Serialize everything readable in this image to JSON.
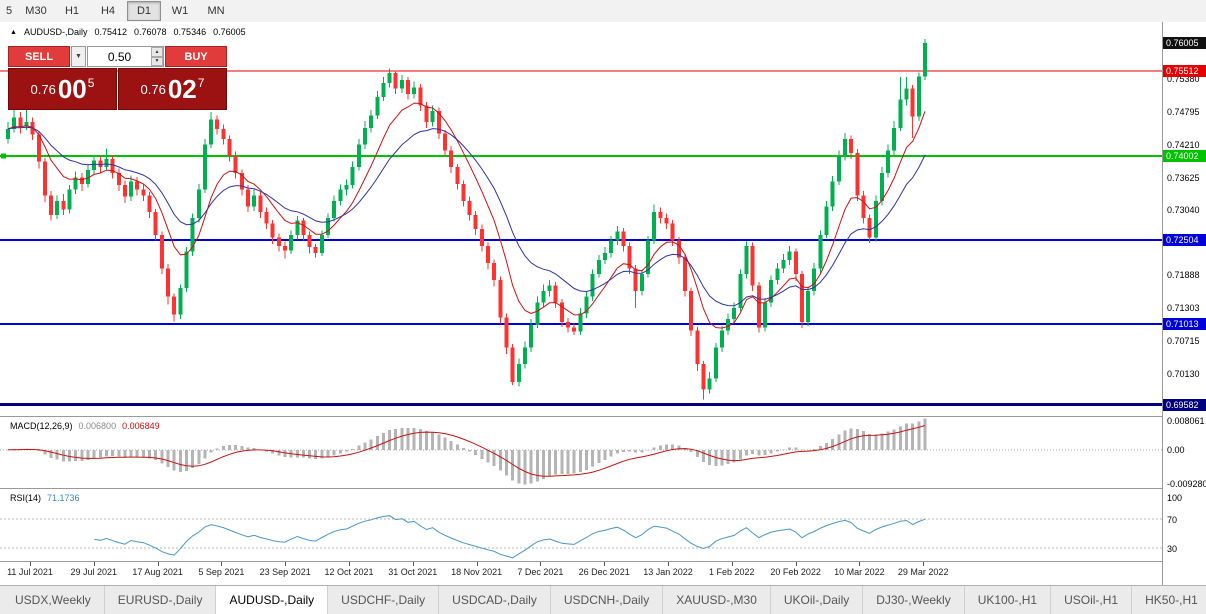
{
  "toolbar": {
    "timeframes": [
      {
        "label": "5",
        "active": false
      },
      {
        "label": "M30",
        "active": false
      },
      {
        "label": "H1",
        "active": false
      },
      {
        "label": "H4",
        "active": false
      },
      {
        "label": "D1",
        "active": true
      },
      {
        "label": "W1",
        "active": false
      },
      {
        "label": "MN",
        "active": false
      }
    ]
  },
  "chart": {
    "info": {
      "direction_icon": "▲",
      "symbol": "AUDUSD-,Daily",
      "open": "0.75412",
      "high": "0.76078",
      "low": "0.75346",
      "close": "0.76005"
    },
    "trade_widget": {
      "sell_label": "SELL",
      "buy_label": "BUY",
      "volume_value": "0.50",
      "sell_price_prefix": "0.76",
      "sell_price_big": "00",
      "sell_price_sup": "5",
      "buy_price_prefix": "0.76",
      "buy_price_big": "02",
      "buy_price_sup": "7",
      "icons": {
        "spinner_up": "▲",
        "spinner_down": "▼",
        "dropdown": "▼"
      }
    },
    "price_axis": {
      "current": {
        "text": "0.76005",
        "value": 0.76005,
        "color": "#111111"
      },
      "ticks": [
        {
          "text": "0.75380",
          "value": 0.7538
        },
        {
          "text": "0.74795",
          "value": 0.74795
        },
        {
          "text": "0.74210",
          "value": 0.7421
        },
        {
          "text": "0.73625",
          "value": 0.73625
        },
        {
          "text": "0.73040",
          "value": 0.7304
        },
        {
          "text": "0.71888",
          "value": 0.71888
        },
        {
          "text": "0.71303",
          "value": 0.71303
        },
        {
          "text": "0.70715",
          "value": 0.70715
        },
        {
          "text": "0.70130",
          "value": 0.7013
        }
      ]
    },
    "macd_panel": {
      "name": "MACD(12,26,9)",
      "main_value": "0.006800",
      "signal_value": "0.006849",
      "axis_labels": [
        {
          "text": "0.008061",
          "value": 0.008061
        },
        {
          "text": "0.00",
          "value": 0
        },
        {
          "text": "-0.009280",
          "value": -0.00928
        }
      ]
    },
    "rsi_panel": {
      "name": "RSI(14)",
      "value": "71.1736",
      "axis_labels": [
        {
          "text": "100",
          "value": 100
        },
        {
          "text": "70",
          "value": 70
        },
        {
          "text": "30",
          "value": 30
        }
      ]
    }
  },
  "chart_data": {
    "type": "candlestick",
    "symbol": "AUDUSD-",
    "timeframe": "Daily",
    "y_range": [
      0.6938,
      0.7638
    ],
    "x_labels": [
      "11 Jul 2021",
      "29 Jul 2021",
      "17 Aug 2021",
      "5 Sep 2021",
      "23 Sep 2021",
      "12 Oct 2021",
      "31 Oct 2021",
      "18 Nov 2021",
      "7 Dec 2021",
      "26 Dec 2021",
      "13 Jan 2022",
      "1 Feb 2022",
      "20 Feb 2022",
      "10 Mar 2022",
      "29 Mar 2022"
    ],
    "colors": {
      "up": "#00b050",
      "down": "#ff3232"
    },
    "h_lines": [
      {
        "price": 0.75512,
        "label": "0.75512",
        "color": "#e60000",
        "width": 1
      },
      {
        "price": 0.74002,
        "label": "0.74002",
        "color": "#00c300",
        "width": 2,
        "handle": true
      },
      {
        "price": 0.72504,
        "label": "0.72504",
        "color": "#0000dd",
        "width": 2
      },
      {
        "price": 0.71013,
        "label": "0.71013",
        "color": "#0000dd",
        "width": 2
      },
      {
        "price": 0.69582,
        "label": "0.69582",
        "color": "#000080",
        "width": 3
      }
    ],
    "moving_averages": [
      {
        "period": 9,
        "color": "#cc1111"
      },
      {
        "period": 19,
        "color": "#3030a8"
      }
    ],
    "macd": {
      "params": [
        12,
        26,
        9
      ],
      "range": [
        -0.0105,
        0.009
      ],
      "histogram_color": "#b4b4b4",
      "signal_color": "#cc1111"
    },
    "rsi": {
      "period": 14,
      "color": "#4a96cc",
      "levels": [
        70,
        30
      ]
    },
    "candles": [
      [
        0.743,
        0.746,
        0.7422,
        0.7448
      ],
      [
        0.7448,
        0.7492,
        0.7442,
        0.7468
      ],
      [
        0.7468,
        0.7478,
        0.744,
        0.7452
      ],
      [
        0.7452,
        0.7482,
        0.7446,
        0.746
      ],
      [
        0.746,
        0.7468,
        0.7428,
        0.7438
      ],
      [
        0.7438,
        0.7444,
        0.7378,
        0.739
      ],
      [
        0.739,
        0.7396,
        0.7318,
        0.733
      ],
      [
        0.733,
        0.7338,
        0.7285,
        0.7295
      ],
      [
        0.7295,
        0.733,
        0.7288,
        0.732
      ],
      [
        0.732,
        0.7332,
        0.7295,
        0.7305
      ],
      [
        0.7305,
        0.7348,
        0.7298,
        0.734
      ],
      [
        0.734,
        0.7372,
        0.7332,
        0.7362
      ],
      [
        0.7362,
        0.737,
        0.7338,
        0.735
      ],
      [
        0.735,
        0.7385,
        0.7344,
        0.7375
      ],
      [
        0.7375,
        0.7402,
        0.7368,
        0.7392
      ],
      [
        0.7392,
        0.74,
        0.737,
        0.738
      ],
      [
        0.738,
        0.7413,
        0.7374,
        0.7395
      ],
      [
        0.7395,
        0.7402,
        0.736,
        0.737
      ],
      [
        0.737,
        0.7378,
        0.7338,
        0.7348
      ],
      [
        0.7348,
        0.7356,
        0.7316,
        0.7328
      ],
      [
        0.7328,
        0.7365,
        0.732,
        0.7355
      ],
      [
        0.7355,
        0.7363,
        0.733,
        0.734
      ],
      [
        0.734,
        0.735,
        0.732,
        0.733
      ],
      [
        0.733,
        0.7336,
        0.729,
        0.73
      ],
      [
        0.73,
        0.7306,
        0.725,
        0.726
      ],
      [
        0.726,
        0.7266,
        0.719,
        0.72
      ],
      [
        0.72,
        0.7208,
        0.7136,
        0.715
      ],
      [
        0.715,
        0.7156,
        0.7106,
        0.7118
      ],
      [
        0.7118,
        0.7172,
        0.711,
        0.7165
      ],
      [
        0.7165,
        0.7238,
        0.7158,
        0.723
      ],
      [
        0.723,
        0.7298,
        0.7222,
        0.729
      ],
      [
        0.729,
        0.735,
        0.7282,
        0.734
      ],
      [
        0.734,
        0.743,
        0.7334,
        0.742
      ],
      [
        0.742,
        0.7478,
        0.7414,
        0.7465
      ],
      [
        0.7465,
        0.7472,
        0.7438,
        0.7448
      ],
      [
        0.7448,
        0.7456,
        0.742,
        0.743
      ],
      [
        0.743,
        0.7436,
        0.739,
        0.74
      ],
      [
        0.74,
        0.7408,
        0.736,
        0.737
      ],
      [
        0.737,
        0.7376,
        0.733,
        0.734
      ],
      [
        0.734,
        0.7348,
        0.73,
        0.731
      ],
      [
        0.731,
        0.734,
        0.7302,
        0.733
      ],
      [
        0.733,
        0.7336,
        0.729,
        0.73
      ],
      [
        0.73,
        0.7308,
        0.727,
        0.728
      ],
      [
        0.728,
        0.7286,
        0.7244,
        0.7255
      ],
      [
        0.7255,
        0.7262,
        0.723,
        0.724
      ],
      [
        0.724,
        0.7248,
        0.7218,
        0.7232
      ],
      [
        0.7232,
        0.7268,
        0.7226,
        0.726
      ],
      [
        0.726,
        0.7293,
        0.7252,
        0.7285
      ],
      [
        0.7285,
        0.729,
        0.725,
        0.726
      ],
      [
        0.726,
        0.7266,
        0.7227,
        0.7238
      ],
      [
        0.7238,
        0.7244,
        0.722,
        0.7228
      ],
      [
        0.7228,
        0.7268,
        0.7222,
        0.726
      ],
      [
        0.726,
        0.7298,
        0.7254,
        0.729
      ],
      [
        0.729,
        0.733,
        0.7284,
        0.732
      ],
      [
        0.732,
        0.7349,
        0.7312,
        0.734
      ],
      [
        0.734,
        0.7358,
        0.733,
        0.7348
      ],
      [
        0.7348,
        0.739,
        0.7342,
        0.738
      ],
      [
        0.738,
        0.743,
        0.7374,
        0.742
      ],
      [
        0.742,
        0.7462,
        0.7412,
        0.745
      ],
      [
        0.745,
        0.7482,
        0.7442,
        0.7472
      ],
      [
        0.7472,
        0.7515,
        0.7466,
        0.7505
      ],
      [
        0.7505,
        0.754,
        0.7498,
        0.753
      ],
      [
        0.753,
        0.7555,
        0.7522,
        0.7547
      ],
      [
        0.7547,
        0.7552,
        0.751,
        0.752
      ],
      [
        0.752,
        0.7544,
        0.7512,
        0.7535
      ],
      [
        0.7535,
        0.754,
        0.75,
        0.751
      ],
      [
        0.751,
        0.7532,
        0.7502,
        0.7522
      ],
      [
        0.7522,
        0.7528,
        0.748,
        0.749
      ],
      [
        0.749,
        0.7496,
        0.745,
        0.746
      ],
      [
        0.746,
        0.749,
        0.7452,
        0.748
      ],
      [
        0.748,
        0.7486,
        0.743,
        0.744
      ],
      [
        0.744,
        0.7446,
        0.74,
        0.741
      ],
      [
        0.741,
        0.7418,
        0.737,
        0.738
      ],
      [
        0.738,
        0.7386,
        0.734,
        0.735
      ],
      [
        0.735,
        0.7356,
        0.731,
        0.732
      ],
      [
        0.732,
        0.7328,
        0.7285,
        0.7295
      ],
      [
        0.7295,
        0.7302,
        0.726,
        0.727
      ],
      [
        0.727,
        0.7278,
        0.723,
        0.724
      ],
      [
        0.724,
        0.7246,
        0.7198,
        0.721
      ],
      [
        0.721,
        0.7216,
        0.7168,
        0.718
      ],
      [
        0.718,
        0.7186,
        0.7102,
        0.7113
      ],
      [
        0.7113,
        0.712,
        0.7048,
        0.706
      ],
      [
        0.706,
        0.7066,
        0.6993,
        0.6998
      ],
      [
        0.6998,
        0.704,
        0.699,
        0.703
      ],
      [
        0.703,
        0.707,
        0.7022,
        0.706
      ],
      [
        0.706,
        0.711,
        0.7052,
        0.71
      ],
      [
        0.71,
        0.715,
        0.7094,
        0.714
      ],
      [
        0.714,
        0.7172,
        0.7132,
        0.716
      ],
      [
        0.716,
        0.718,
        0.715,
        0.717
      ],
      [
        0.717,
        0.7176,
        0.713,
        0.714
      ],
      [
        0.714,
        0.7146,
        0.7096,
        0.7105
      ],
      [
        0.7105,
        0.7112,
        0.7086,
        0.7095
      ],
      [
        0.7095,
        0.7102,
        0.7082,
        0.7088
      ],
      [
        0.7088,
        0.713,
        0.7082,
        0.712
      ],
      [
        0.712,
        0.7158,
        0.7112,
        0.715
      ],
      [
        0.715,
        0.7198,
        0.7142,
        0.719
      ],
      [
        0.719,
        0.7224,
        0.7184,
        0.7215
      ],
      [
        0.7215,
        0.7238,
        0.7208,
        0.7228
      ],
      [
        0.7228,
        0.7258,
        0.722,
        0.725
      ],
      [
        0.725,
        0.7276,
        0.7242,
        0.7266
      ],
      [
        0.7266,
        0.7272,
        0.723,
        0.724
      ],
      [
        0.724,
        0.7246,
        0.719,
        0.72
      ],
      [
        0.72,
        0.7206,
        0.713,
        0.716
      ],
      [
        0.716,
        0.7198,
        0.7152,
        0.719
      ],
      [
        0.719,
        0.7258,
        0.7184,
        0.725
      ],
      [
        0.725,
        0.7314,
        0.7244,
        0.73
      ],
      [
        0.73,
        0.7308,
        0.728,
        0.729
      ],
      [
        0.729,
        0.7298,
        0.727,
        0.728
      ],
      [
        0.728,
        0.7286,
        0.724,
        0.725
      ],
      [
        0.725,
        0.7256,
        0.7208,
        0.722
      ],
      [
        0.722,
        0.7226,
        0.715,
        0.716
      ],
      [
        0.716,
        0.7166,
        0.708,
        0.709
      ],
      [
        0.709,
        0.7096,
        0.7018,
        0.703
      ],
      [
        0.703,
        0.7036,
        0.6967,
        0.6985
      ],
      [
        0.6985,
        0.7016,
        0.6978,
        0.7005
      ],
      [
        0.7005,
        0.7068,
        0.6998,
        0.706
      ],
      [
        0.706,
        0.7098,
        0.7052,
        0.709
      ],
      [
        0.709,
        0.712,
        0.7082,
        0.711
      ],
      [
        0.711,
        0.714,
        0.7102,
        0.713
      ],
      [
        0.713,
        0.7198,
        0.7124,
        0.719
      ],
      [
        0.719,
        0.7248,
        0.7182,
        0.724
      ],
      [
        0.724,
        0.7246,
        0.716,
        0.717
      ],
      [
        0.717,
        0.7176,
        0.7086,
        0.7095
      ],
      [
        0.7095,
        0.7148,
        0.7088,
        0.714
      ],
      [
        0.714,
        0.7188,
        0.7132,
        0.718
      ],
      [
        0.718,
        0.721,
        0.7172,
        0.72
      ],
      [
        0.72,
        0.7226,
        0.7192,
        0.7215
      ],
      [
        0.7215,
        0.724,
        0.7206,
        0.723
      ],
      [
        0.723,
        0.7236,
        0.7178,
        0.719
      ],
      [
        0.719,
        0.7196,
        0.7094,
        0.7105
      ],
      [
        0.7105,
        0.7168,
        0.7098,
        0.716
      ],
      [
        0.716,
        0.721,
        0.7152,
        0.72
      ],
      [
        0.72,
        0.7268,
        0.7192,
        0.726
      ],
      [
        0.726,
        0.732,
        0.7254,
        0.731
      ],
      [
        0.731,
        0.7364,
        0.7302,
        0.7355
      ],
      [
        0.7355,
        0.741,
        0.7348,
        0.74
      ],
      [
        0.74,
        0.7441,
        0.7392,
        0.743
      ],
      [
        0.743,
        0.7436,
        0.7395,
        0.7405
      ],
      [
        0.7405,
        0.7412,
        0.732,
        0.733
      ],
      [
        0.733,
        0.7338,
        0.728,
        0.729
      ],
      [
        0.729,
        0.7296,
        0.7245,
        0.7255
      ],
      [
        0.7255,
        0.733,
        0.7248,
        0.732
      ],
      [
        0.732,
        0.738,
        0.7312,
        0.737
      ],
      [
        0.737,
        0.742,
        0.7362,
        0.741
      ],
      [
        0.741,
        0.7462,
        0.7402,
        0.745
      ],
      [
        0.745,
        0.754,
        0.7444,
        0.75
      ],
      [
        0.75,
        0.754,
        0.749,
        0.752
      ],
      [
        0.752,
        0.7526,
        0.7432,
        0.747
      ],
      [
        0.747,
        0.7548,
        0.7462,
        0.7541
      ],
      [
        0.7541,
        0.76078,
        0.75346,
        0.76005
      ]
    ]
  },
  "tabs": [
    {
      "label": "USDX,Weekly",
      "active": false
    },
    {
      "label": "EURUSD-,Daily",
      "active": false
    },
    {
      "label": "AUDUSD-,Daily",
      "active": true
    },
    {
      "label": "USDCHF-,Daily",
      "active": false
    },
    {
      "label": "USDCAD-,Daily",
      "active": false
    },
    {
      "label": "USDCNH-,Daily",
      "active": false
    },
    {
      "label": "XAUUSD-,M30",
      "active": false
    },
    {
      "label": "UKOil-,Daily",
      "active": false
    },
    {
      "label": "DJ30-,Weekly",
      "active": false
    },
    {
      "label": "UK100-,H1",
      "active": false
    },
    {
      "label": "USOil-,H1",
      "active": false
    },
    {
      "label": "HK50-,H1",
      "active": false
    }
  ]
}
